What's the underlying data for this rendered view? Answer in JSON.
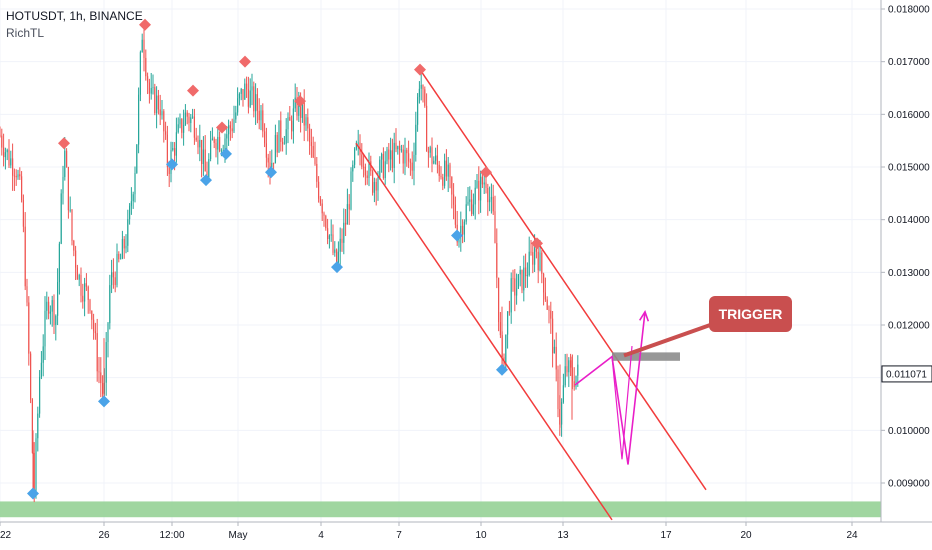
{
  "legend": {
    "symbol": "HOTUSDT, 1h, BINANCE",
    "indicator": "RichTL"
  },
  "annotation": {
    "label": "TRIGGER",
    "color": "#c94f4f"
  },
  "colors": {
    "up": "#26a69a",
    "down": "#ef5350",
    "channel": "#f23c3c",
    "projection": "#e91ec8",
    "support_zone": "#8fcf8f",
    "trigger_zone": "#8c8c8c",
    "pivot_high": "#f06a6a",
    "pivot_low": "#4aa3e8"
  },
  "chart_data": {
    "type": "candlestick",
    "symbol": "HOTUSDT",
    "timeframe": "1h",
    "exchange": "BINANCE",
    "y_axis": {
      "range": [
        0.0083,
        0.0182
      ],
      "ticks": [
        "0.018000",
        "0.017000",
        "0.016000",
        "0.015000",
        "0.014000",
        "0.013000",
        "0.012000",
        "0.011000",
        "0.010000",
        "0.009000"
      ],
      "current_price": "0.011071"
    },
    "x_axis": {
      "ticks": [
        "22",
        "26",
        "12:00",
        "May",
        "4",
        "7",
        "10",
        "13",
        "17",
        "20",
        "24"
      ],
      "tick_index": [
        0,
        104,
        172,
        238,
        321,
        399,
        481,
        563,
        666,
        746,
        852
      ],
      "index_range": [
        0,
        880
      ]
    },
    "price_path": [
      [
        0,
        0.0156
      ],
      [
        8,
        0.0152
      ],
      [
        16,
        0.015
      ],
      [
        22,
        0.0143
      ],
      [
        28,
        0.0118
      ],
      [
        34,
        0.0088
      ],
      [
        40,
        0.0112
      ],
      [
        48,
        0.0125
      ],
      [
        56,
        0.0122
      ],
      [
        64,
        0.0154
      ],
      [
        72,
        0.0136
      ],
      [
        80,
        0.0128
      ],
      [
        90,
        0.0125
      ],
      [
        98,
        0.0112
      ],
      [
        104,
        0.0106
      ],
      [
        110,
        0.0128
      ],
      [
        120,
        0.0132
      ],
      [
        128,
        0.0138
      ],
      [
        136,
        0.0152
      ],
      [
        142,
        0.0176
      ],
      [
        150,
        0.0163
      ],
      [
        160,
        0.0162
      ],
      [
        168,
        0.015
      ],
      [
        176,
        0.0155
      ],
      [
        186,
        0.016
      ],
      [
        196,
        0.0158
      ],
      [
        206,
        0.0148
      ],
      [
        214,
        0.0156
      ],
      [
        222,
        0.0155
      ],
      [
        232,
        0.0158
      ],
      [
        240,
        0.0163
      ],
      [
        246,
        0.0165
      ],
      [
        254,
        0.0162
      ],
      [
        262,
        0.016
      ],
      [
        270,
        0.015
      ],
      [
        278,
        0.0156
      ],
      [
        288,
        0.0157
      ],
      [
        298,
        0.0162
      ],
      [
        306,
        0.0158
      ],
      [
        316,
        0.0148
      ],
      [
        326,
        0.014
      ],
      [
        336,
        0.0131
      ],
      [
        346,
        0.014
      ],
      [
        356,
        0.0153
      ],
      [
        364,
        0.0152
      ],
      [
        372,
        0.0147
      ],
      [
        382,
        0.015
      ],
      [
        392,
        0.0152
      ],
      [
        402,
        0.0153
      ],
      [
        412,
        0.015
      ],
      [
        420,
        0.0168
      ],
      [
        428,
        0.0153
      ],
      [
        438,
        0.015
      ],
      [
        448,
        0.0148
      ],
      [
        458,
        0.0137
      ],
      [
        466,
        0.0142
      ],
      [
        476,
        0.0145
      ],
      [
        486,
        0.0148
      ],
      [
        494,
        0.0139
      ],
      [
        502,
        0.0111
      ],
      [
        510,
        0.0126
      ],
      [
        520,
        0.0128
      ],
      [
        528,
        0.0131
      ],
      [
        536,
        0.0135
      ],
      [
        544,
        0.0128
      ],
      [
        552,
        0.0118
      ],
      [
        560,
        0.0102
      ],
      [
        566,
        0.0112
      ],
      [
        572,
        0.011
      ],
      [
        578,
        0.01107
      ]
    ],
    "pivots": [
      {
        "type": "high",
        "x": 64,
        "price": 0.01545
      },
      {
        "type": "high",
        "x": 145,
        "price": 0.0177
      },
      {
        "type": "high",
        "x": 193,
        "price": 0.01645
      },
      {
        "type": "high",
        "x": 222,
        "price": 0.01575
      },
      {
        "type": "high",
        "x": 245,
        "price": 0.017
      },
      {
        "type": "high",
        "x": 300,
        "price": 0.01625
      },
      {
        "type": "high",
        "x": 420,
        "price": 0.01685
      },
      {
        "type": "high",
        "x": 486,
        "price": 0.0149
      },
      {
        "type": "high",
        "x": 537,
        "price": 0.01355
      },
      {
        "type": "low",
        "x": 33,
        "price": 0.0088
      },
      {
        "type": "low",
        "x": 104,
        "price": 0.01055
      },
      {
        "type": "low",
        "x": 172,
        "price": 0.01505
      },
      {
        "type": "low",
        "x": 206,
        "price": 0.01475
      },
      {
        "type": "low",
        "x": 226,
        "price": 0.01525
      },
      {
        "type": "low",
        "x": 271,
        "price": 0.0149
      },
      {
        "type": "low",
        "x": 337,
        "price": 0.0131
      },
      {
        "type": "low",
        "x": 457,
        "price": 0.0137
      },
      {
        "type": "low",
        "x": 502,
        "price": 0.01115
      }
    ],
    "channel": {
      "upper": [
        [
          420,
          0.01685
        ],
        [
          706,
          0.00887
        ]
      ],
      "lower": [
        [
          356,
          0.01545
        ],
        [
          612,
          0.0083
        ]
      ]
    },
    "trigger_zone": {
      "x": [
        612,
        680
      ],
      "price": [
        0.01132,
        0.01148
      ]
    },
    "support_zone": {
      "price": [
        0.00835,
        0.00865
      ]
    },
    "projection": [
      [
        575,
        0.01086
      ],
      [
        612,
        0.0114
      ],
      [
        628,
        0.00935
      ],
      [
        645,
        0.01225
      ]
    ]
  }
}
